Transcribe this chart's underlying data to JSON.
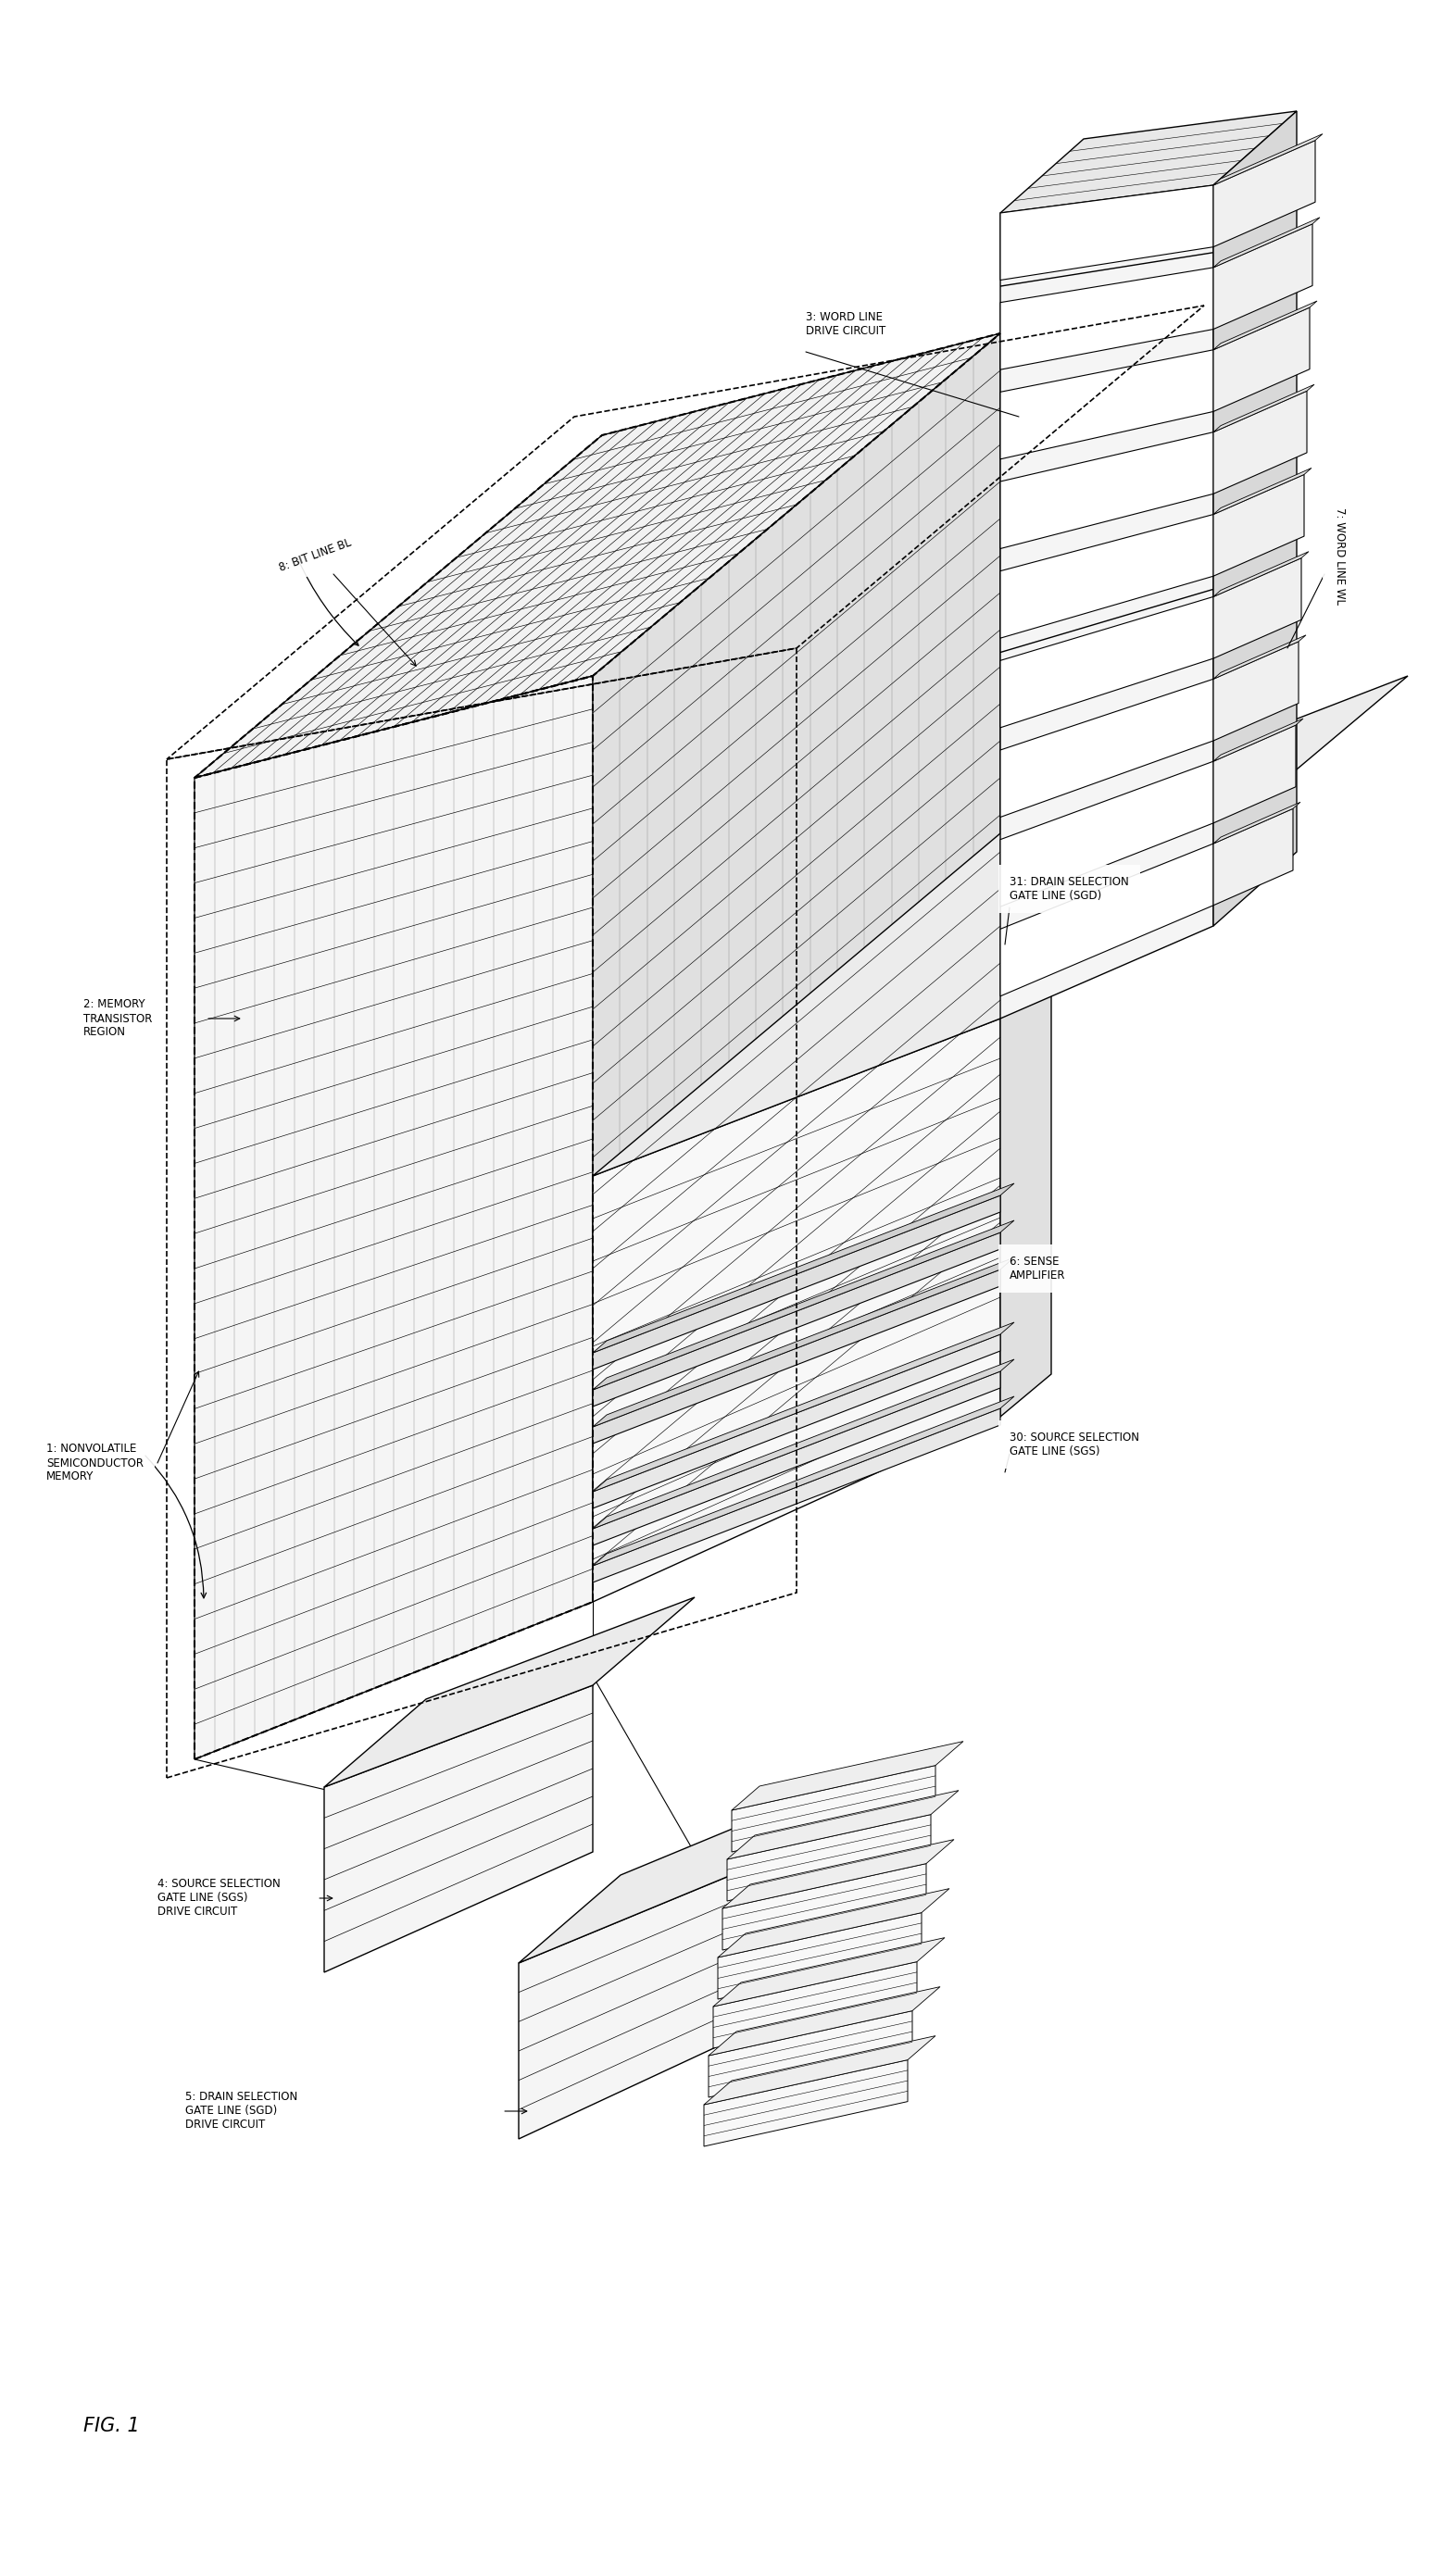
{
  "bg_color": "#ffffff",
  "line_color": "#000000",
  "fig_label": "FIG. 1",
  "font_size_small": 8.5,
  "font_size_title": 13,
  "labels": {
    "nonvolatile": "1: NONVOLATILE\nSEMICONDUCTOR\nMEMORY",
    "memory_region": "2: MEMORY\nTRANSISTOR\nREGION",
    "word_line_drive": "3: WORD LINE\nDRIVE CIRCUIT",
    "source_sel_drive": "4: SOURCE SELECTION\nGATE LINE (SGS)\nDRIVE CIRCUIT",
    "drain_sel_drive": "5: DRAIN SELECTION\nGATE LINE (SGD)\nDRIVE CIRCUIT",
    "sense_amp": "6: SENSE\nAMPLIFIER",
    "word_line_wl": "7: WORD LINE WL",
    "bit_line_bl": "8: BIT LINE BL",
    "drain_sel_line": "31: DRAIN SELECTION\nGATE LINE (SGD)",
    "source_sel_line": "30: SOURCE SELECTION\nGATE LINE (SGS)"
  }
}
